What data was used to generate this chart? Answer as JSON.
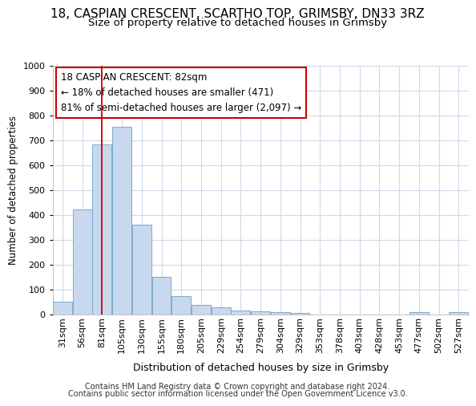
{
  "title1": "18, CASPIAN CRESCENT, SCARTHO TOP, GRIMSBY, DN33 3RZ",
  "title2": "Size of property relative to detached houses in Grimsby",
  "xlabel": "Distribution of detached houses by size in Grimsby",
  "ylabel": "Number of detached properties",
  "categories": [
    "31sqm",
    "56sqm",
    "81sqm",
    "105sqm",
    "130sqm",
    "155sqm",
    "180sqm",
    "205sqm",
    "229sqm",
    "254sqm",
    "279sqm",
    "304sqm",
    "329sqm",
    "353sqm",
    "378sqm",
    "403sqm",
    "428sqm",
    "453sqm",
    "477sqm",
    "502sqm",
    "527sqm"
  ],
  "values": [
    52,
    422,
    685,
    755,
    362,
    152,
    74,
    40,
    28,
    16,
    12,
    9,
    6,
    0,
    0,
    0,
    0,
    0,
    9,
    0,
    9
  ],
  "bar_color": "#c8d8ee",
  "bar_edge_color": "#7eaacc",
  "vline_x": 2.0,
  "vline_color": "#cc0000",
  "annotation_text": "18 CASPIAN CRESCENT: 82sqm\n← 18% of detached houses are smaller (471)\n81% of semi-detached houses are larger (2,097) →",
  "annotation_box_facecolor": "#ffffff",
  "annotation_box_edgecolor": "#cc0000",
  "footer1": "Contains HM Land Registry data © Crown copyright and database right 2024.",
  "footer2": "Contains public sector information licensed under the Open Government Licence v3.0.",
  "ylim": [
    0,
    1000
  ],
  "background_color": "#ffffff",
  "plot_bg_color": "#ffffff",
  "grid_color": "#d0d8e8",
  "title1_fontsize": 11,
  "title2_fontsize": 9.5,
  "xlabel_fontsize": 9,
  "ylabel_fontsize": 8.5,
  "tick_fontsize": 8,
  "footer_fontsize": 7,
  "ann_fontsize": 8.5
}
